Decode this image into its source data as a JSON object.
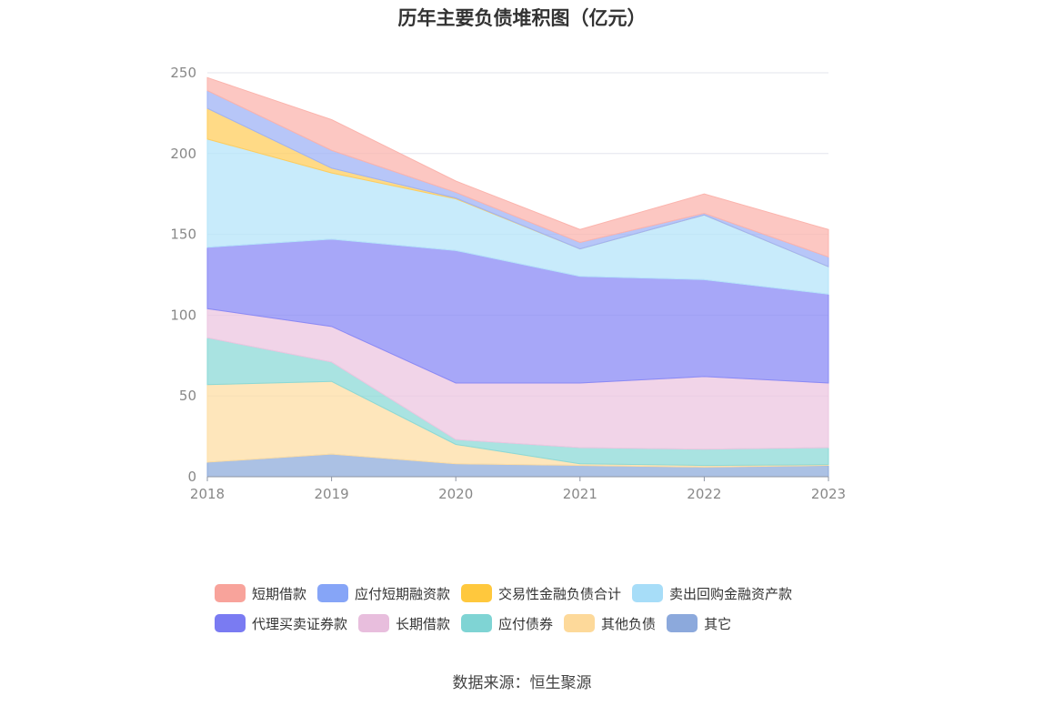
{
  "chart_data": {
    "type": "area",
    "stacked": true,
    "title": "历年主要负债堆积图（亿元）",
    "x": [
      "2018",
      "2019",
      "2020",
      "2021",
      "2022",
      "2023"
    ],
    "ylim": [
      0,
      250
    ],
    "yticks": [
      0,
      50,
      100,
      150,
      200,
      250
    ],
    "grid": true,
    "legend_position": "bottom",
    "series": [
      {
        "name": "其它",
        "color": "#8FACDB",
        "values": [
          9,
          14,
          8,
          7,
          6,
          7
        ]
      },
      {
        "name": "其他负债",
        "color": "#FDDDA4",
        "values": [
          48,
          45,
          12,
          1,
          1,
          0.5
        ]
      },
      {
        "name": "应付债券",
        "color": "#8CD9D7",
        "values": [
          29,
          12,
          3,
          10,
          10,
          10.5
        ]
      },
      {
        "name": "长期借款",
        "color": "#ECC6E0",
        "values": [
          18,
          22,
          35,
          40,
          45,
          40
        ]
      },
      {
        "name": "代理买卖证券款",
        "color": "#8A8AF5",
        "values": [
          38,
          54,
          82,
          66,
          60,
          55
        ]
      },
      {
        "name": "卖出回购金融资产款",
        "color": "#B6E4FA",
        "values": [
          67,
          41,
          32,
          17,
          40,
          17
        ]
      },
      {
        "name": "交易性金融负债合计",
        "color": "#FFCD5E",
        "values": [
          19,
          3,
          0.5,
          0,
          0,
          0
        ]
      },
      {
        "name": "应付短期融资款",
        "color": "#9FB3F5",
        "values": [
          11,
          11,
          3.5,
          4,
          1,
          6
        ]
      },
      {
        "name": "短期借款",
        "color": "#FBB4AD",
        "values": [
          8,
          19,
          7,
          8,
          12,
          17
        ]
      }
    ]
  },
  "legend": {
    "row1": [
      {
        "label": "短期借款",
        "color": "#F8A39B"
      },
      {
        "label": "应付短期融资款",
        "color": "#86A5F7"
      },
      {
        "label": "交易性金融负债合计",
        "color": "#FFC83D"
      },
      {
        "label": "卖出回购金融资产款",
        "color": "#A7DDF8"
      }
    ],
    "row2": [
      {
        "label": "代理买卖证券款",
        "color": "#7A7BF2"
      },
      {
        "label": "长期借款",
        "color": "#E8BEDD"
      },
      {
        "label": "应付债券",
        "color": "#7FD4D4"
      },
      {
        "label": "其他负债",
        "color": "#FDD99A"
      },
      {
        "label": "其它",
        "color": "#8CA9DC"
      }
    ]
  },
  "source": "数据来源：恒生聚源"
}
